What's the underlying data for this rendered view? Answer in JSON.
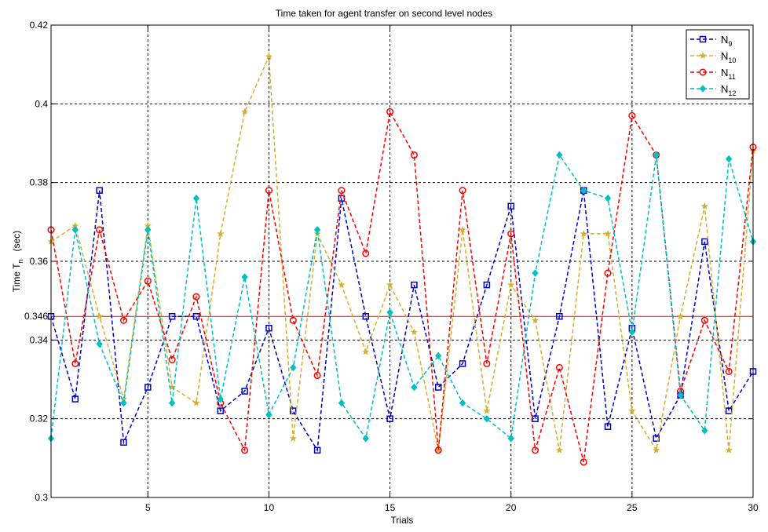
{
  "chart_data": {
    "type": "line",
    "title": "Time taken for agent transfer on second level nodes",
    "xlabel": "Trials",
    "ylabel": {
      "main": "Time T",
      "sub": "n",
      "unit": "(sec)"
    },
    "xlim": [
      1,
      30
    ],
    "ylim": [
      0.3,
      0.42
    ],
    "xticks": [
      5,
      10,
      15,
      20,
      25,
      30
    ],
    "yticks": [
      0.3,
      0.32,
      0.34,
      0.36,
      0.38,
      0.4,
      0.42
    ],
    "xtick_labels": [
      "5",
      "10",
      "15",
      "20",
      "25",
      "30"
    ],
    "ytick_labels": [
      "0.3",
      "0.32",
      "0.34",
      "0.36",
      "0.38",
      "0.4",
      "0.42"
    ],
    "grid": true,
    "legend_position": "top-right",
    "reference_line": {
      "value": 0.346,
      "label": "0.346",
      "color": "#ff0000"
    },
    "x": [
      1,
      2,
      3,
      4,
      5,
      6,
      7,
      8,
      9,
      10,
      11,
      12,
      13,
      14,
      15,
      16,
      17,
      18,
      19,
      20,
      21,
      22,
      23,
      24,
      25,
      26,
      27,
      28,
      29,
      30
    ],
    "series": [
      {
        "name": "N",
        "sub": "9",
        "color": "#0000cc",
        "marker": "square",
        "values": [
          0.346,
          0.325,
          0.378,
          0.314,
          0.328,
          0.346,
          0.346,
          0.322,
          0.327,
          0.343,
          0.322,
          0.312,
          0.376,
          0.346,
          0.32,
          0.354,
          0.328,
          0.334,
          0.354,
          0.374,
          0.32,
          0.346,
          0.378,
          0.318,
          0.343,
          0.315,
          0.326,
          0.365,
          0.322,
          0.332
        ]
      },
      {
        "name": "N",
        "sub": "10",
        "color": "#d4b030",
        "marker": "star",
        "values": [
          0.365,
          0.369,
          0.346,
          0.325,
          0.369,
          0.328,
          0.324,
          0.367,
          0.398,
          0.412,
          0.315,
          0.367,
          0.354,
          0.337,
          0.354,
          0.342,
          0.312,
          0.368,
          0.322,
          0.354,
          0.345,
          0.312,
          0.367,
          0.367,
          0.322,
          0.312,
          0.346,
          0.374,
          0.312,
          0.388
        ]
      },
      {
        "name": "N",
        "sub": "11",
        "color": "#ff0000",
        "marker": "circle",
        "values": [
          0.368,
          0.334,
          0.368,
          0.345,
          0.355,
          0.335,
          0.351,
          0.324,
          0.312,
          0.378,
          0.345,
          0.331,
          0.378,
          0.362,
          0.398,
          0.387,
          0.312,
          0.378,
          0.334,
          0.367,
          0.312,
          0.333,
          0.309,
          0.357,
          0.397,
          0.387,
          0.327,
          0.345,
          0.332,
          0.389
        ]
      },
      {
        "name": "N",
        "sub": "12",
        "color": "#00c0c0",
        "marker": "diamond",
        "values": [
          0.315,
          0.368,
          0.339,
          0.324,
          0.368,
          0.324,
          0.376,
          0.325,
          0.356,
          0.321,
          0.333,
          0.368,
          0.324,
          0.315,
          0.347,
          0.328,
          0.336,
          0.324,
          0.32,
          0.315,
          0.357,
          0.387,
          0.378,
          0.376,
          0.342,
          0.387,
          0.326,
          0.317,
          0.386,
          0.365
        ]
      }
    ]
  }
}
